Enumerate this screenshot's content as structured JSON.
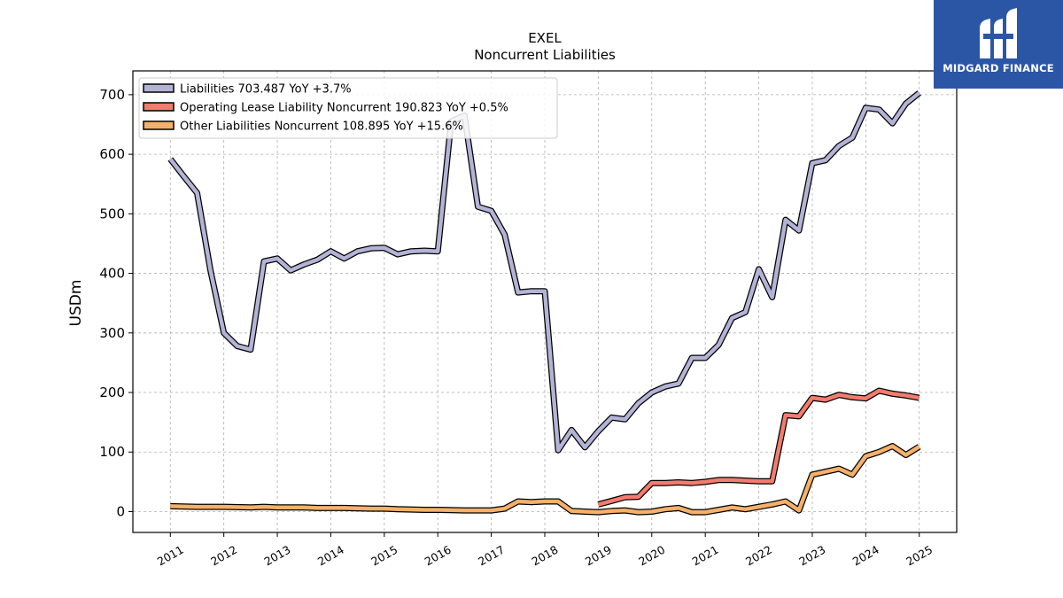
{
  "title": "EXEL",
  "subtitle": "Noncurrent  Liabilities",
  "logo": {
    "text": "MIDGARD FINANCE",
    "color": "#2b56a6"
  },
  "chart_data": {
    "type": "line",
    "ylabel": "USDm",
    "xlabel": "",
    "ylim": [
      -35,
      740
    ],
    "xlim": [
      2010.3,
      2025.7
    ],
    "yticks": [
      0,
      100,
      200,
      300,
      400,
      500,
      600,
      700
    ],
    "xticks": [
      "2011",
      "2012",
      "2013",
      "2014",
      "2015",
      "2016",
      "2017",
      "2018",
      "2019",
      "2020",
      "2021",
      "2022",
      "2023",
      "2024",
      "2025"
    ],
    "grid": true,
    "legend_position": "top-left",
    "series": [
      {
        "name": "Liabilities",
        "legend_label": "Liabilities  703.487 YoY +3.7%",
        "color": "#b3b3d6",
        "x": [
          2011.0,
          2011.25,
          2011.5,
          2011.75,
          2012.0,
          2012.25,
          2012.5,
          2012.75,
          2013.0,
          2013.25,
          2013.5,
          2013.75,
          2014.0,
          2014.25,
          2014.5,
          2014.75,
          2015.0,
          2015.25,
          2015.5,
          2015.75,
          2016.0,
          2016.25,
          2016.5,
          2016.75,
          2017.0,
          2017.25,
          2017.5,
          2017.75,
          2018.0,
          2018.25,
          2018.5,
          2018.75,
          2019.0,
          2019.25,
          2019.5,
          2019.75,
          2020.0,
          2020.25,
          2020.5,
          2020.75,
          2021.0,
          2021.25,
          2021.5,
          2021.75,
          2022.0,
          2022.25,
          2022.5,
          2022.75,
          2023.0,
          2023.25,
          2023.5,
          2023.75,
          2024.0,
          2024.25,
          2024.5,
          2024.75,
          2025.0
        ],
        "values": [
          592,
          563,
          535,
          405,
          300,
          278,
          272,
          420,
          425,
          405,
          415,
          423,
          437,
          425,
          437,
          442,
          443,
          432,
          437,
          438,
          437,
          655,
          665,
          512,
          505,
          465,
          368,
          370,
          370,
          103,
          137,
          108,
          135,
          158,
          155,
          182,
          200,
          210,
          215,
          258,
          258,
          280,
          325,
          335,
          407,
          360,
          490,
          472,
          585,
          590,
          614,
          628,
          678,
          675,
          652,
          685,
          703
        ]
      },
      {
        "name": "Operating Lease Liability Noncurrent",
        "legend_label": "Operating Lease Liability Noncurrent  190.823 YoY +0.5%",
        "color": "#f27c6e",
        "x": [
          2019.0,
          2019.25,
          2019.5,
          2019.75,
          2020.0,
          2020.25,
          2020.5,
          2020.75,
          2021.0,
          2021.25,
          2021.5,
          2021.75,
          2022.0,
          2022.25,
          2022.5,
          2022.75,
          2023.0,
          2023.25,
          2023.5,
          2023.75,
          2024.0,
          2024.25,
          2024.5,
          2024.75,
          2025.0
        ],
        "values": [
          12,
          18,
          24,
          25,
          48,
          48,
          49,
          48,
          50,
          53,
          53,
          52,
          51,
          51,
          162,
          160,
          191,
          188,
          196,
          192,
          190,
          203,
          198,
          195,
          191
        ]
      },
      {
        "name": "Other Liabilities Noncurrent",
        "legend_label": "Other Liabilities Noncurrent  108.895 YoY +15.6%",
        "color": "#f5b06a",
        "x": [
          2011.0,
          2011.5,
          2012.0,
          2012.5,
          2012.75,
          2013.0,
          2013.5,
          2013.75,
          2014.0,
          2014.25,
          2014.75,
          2015.0,
          2015.25,
          2015.75,
          2016.0,
          2016.5,
          2016.75,
          2017.0,
          2017.25,
          2017.5,
          2017.75,
          2018.0,
          2018.25,
          2018.5,
          2018.75,
          2019.0,
          2019.25,
          2019.5,
          2019.75,
          2020.0,
          2020.25,
          2020.5,
          2020.75,
          2021.0,
          2021.25,
          2021.5,
          2021.75,
          2022.0,
          2022.25,
          2022.5,
          2022.75,
          2023.0,
          2023.25,
          2023.5,
          2023.75,
          2024.0,
          2024.25,
          2024.5,
          2024.75,
          2025.0
        ],
        "values": [
          9,
          8,
          8,
          7,
          8,
          7,
          7,
          6,
          6,
          6,
          5,
          5,
          4,
          3,
          3,
          2,
          2,
          2,
          5,
          17,
          16,
          17,
          17,
          1,
          0,
          -1,
          1,
          2,
          -1,
          0,
          4,
          6,
          -1,
          -1,
          3,
          7,
          4,
          8,
          12,
          17,
          2,
          62,
          67,
          72,
          62,
          93,
          100,
          110,
          95,
          109
        ]
      }
    ]
  }
}
